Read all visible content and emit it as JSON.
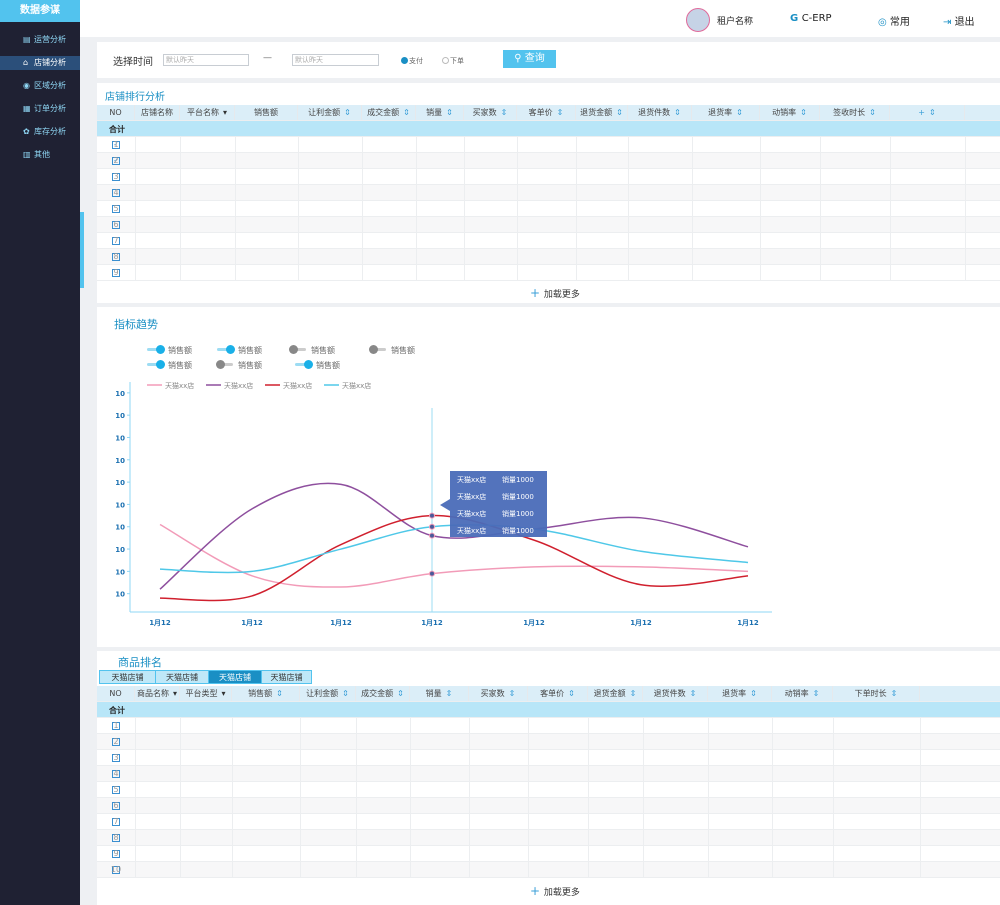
{
  "sidebar": {
    "logo": "数据参谋",
    "menu": [
      "运营分析",
      "店铺分析",
      "区域分析",
      "订单分析",
      "库存分析",
      "其他"
    ],
    "active": 1
  },
  "topbar": {
    "tenant": "租户名称",
    "erp": "C-ERP",
    "common": "常用",
    "logout": "退出"
  },
  "filter": {
    "label": "选择时间",
    "start_placeholder": "默认昨天",
    "separator": "—",
    "end_placeholder": "默认昨天",
    "radios": [
      "支付",
      "下单"
    ],
    "radio_selected": 0,
    "button": "查询"
  },
  "shop_table": {
    "title": "店铺排行分析",
    "columns": [
      "NO",
      "店铺名称",
      "平台名称",
      "销售额",
      "让利金额",
      "成交金额",
      "销量",
      "买家数",
      "客单价",
      "退货金额",
      "退货件数",
      "退货率",
      "动销率",
      "签收时长",
      "+"
    ],
    "total": "合计",
    "rows": [
      {
        "no": "1",
        "checked": true
      },
      {
        "no": "2",
        "checked": true
      },
      {
        "no": "3",
        "checked": false
      },
      {
        "no": "4",
        "checked": false
      },
      {
        "no": "5",
        "checked": false
      },
      {
        "no": "6",
        "checked": false
      },
      {
        "no": "7",
        "checked": false
      },
      {
        "no": "8",
        "checked": false
      },
      {
        "no": "9",
        "checked": false
      }
    ],
    "more": "加载更多"
  },
  "trend": {
    "title": "指标趋势",
    "toggles": [
      {
        "name": "销售额",
        "on": true
      },
      {
        "name": "销售额",
        "on": true
      },
      {
        "name": "销售额",
        "on": false
      },
      {
        "name": "销售额",
        "on": false
      },
      {
        "name": "销售额",
        "on": true
      },
      {
        "name": "销售额",
        "on": false
      },
      {
        "name": "销售额",
        "on": true
      }
    ],
    "chart_data": {
      "type": "line",
      "categories": [
        "1月12",
        "1月12",
        "1月12",
        "1月12",
        "1月12",
        "1月12",
        "1月12"
      ],
      "series": [
        {
          "name": "天猫xx店",
          "color": "#f29bb8",
          "values": [
            4.1,
            1.8,
            1.3,
            1.9,
            2.2,
            2.2,
            2.0
          ]
        },
        {
          "name": "天猫xx店",
          "color": "#8e4f9e",
          "values": [
            1.2,
            4.8,
            5.9,
            3.6,
            3.9,
            4.4,
            3.1
          ]
        },
        {
          "name": "天猫xx店",
          "color": "#d0202e",
          "values": [
            0.8,
            0.9,
            3.2,
            4.5,
            3.4,
            1.4,
            1.8
          ]
        },
        {
          "name": "天猫xx店",
          "color": "#4fc8e8",
          "values": [
            2.1,
            2.0,
            3.0,
            4.0,
            3.9,
            2.9,
            2.4
          ]
        }
      ],
      "ylim": [
        0,
        10.8
      ],
      "yticks": [
        {
          "value": 1,
          "label": "10"
        },
        {
          "value": 2,
          "label": "10"
        },
        {
          "value": 3,
          "label": "10"
        },
        {
          "value": 4,
          "label": "10"
        },
        {
          "value": 5,
          "label": "10"
        },
        {
          "value": 6,
          "label": "10"
        },
        {
          "value": 7,
          "label": "10"
        },
        {
          "value": 8,
          "label": "10"
        },
        {
          "value": 9,
          "label": "10"
        },
        {
          "value": 10,
          "label": "10"
        }
      ],
      "tooltip": {
        "index": 3,
        "rows": [
          [
            "天猫xx店",
            "销量1000"
          ],
          [
            "天猫xx店",
            "销量1000"
          ],
          [
            "天猫xx店",
            "销量1000"
          ],
          [
            "天猫xx店",
            "销量1000"
          ]
        ]
      }
    }
  },
  "goods_table": {
    "title": "商品排名",
    "tabs": [
      "天猫店铺",
      "天猫店铺",
      "天猫店铺",
      "天猫店铺"
    ],
    "active_tab": 2,
    "columns": [
      "NO",
      "商品名称",
      "平台类型",
      "销售额",
      "让利金额",
      "成交金额",
      "销量",
      "买家数",
      "客单价",
      "退货金额",
      "退货件数",
      "退货率",
      "动销率",
      "下单时长"
    ],
    "total": "合计",
    "rows": [
      {
        "no": "1",
        "checked": false
      },
      {
        "no": "2",
        "checked": false
      },
      {
        "no": "3",
        "checked": false
      },
      {
        "no": "4",
        "checked": false
      },
      {
        "no": "5",
        "checked": false
      },
      {
        "no": "6",
        "checked": false
      },
      {
        "no": "7",
        "checked": false
      },
      {
        "no": "8",
        "checked": false
      },
      {
        "no": "9",
        "checked": false
      },
      {
        "no": "10",
        "checked": false
      }
    ],
    "more": "加载更多"
  }
}
